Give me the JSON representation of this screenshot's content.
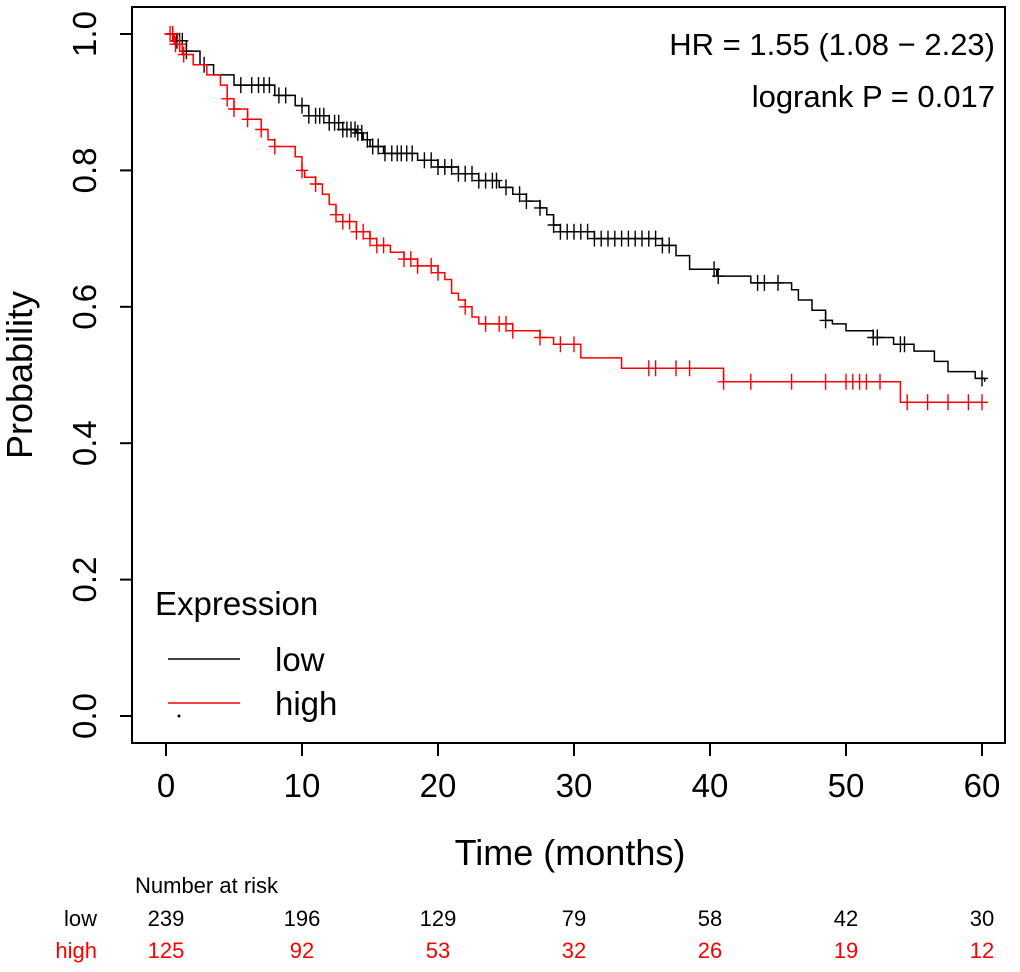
{
  "chart_data": {
    "type": "line",
    "subtype": "kaplan-meier",
    "xlabel": "Time (months)",
    "ylabel": "Probability",
    "xlim": [
      0,
      60
    ],
    "ylim": [
      0,
      1
    ],
    "xticks": [
      "0",
      "10",
      "20",
      "30",
      "40",
      "50",
      "60"
    ],
    "yticks": [
      "0.0",
      "0.2",
      "0.4",
      "0.6",
      "0.8",
      "1.0"
    ],
    "annotations": {
      "hr": "HR = 1.55 (1.08 − 2.23)",
      "logrank": "logrank P = 0.017"
    },
    "legend": {
      "title": "Expression",
      "position": "bottom-left",
      "entries": [
        "low",
        "high"
      ]
    },
    "series": [
      {
        "name": "low",
        "color": "#000000",
        "steps": [
          [
            0,
            1.0
          ],
          [
            0.8,
            0.99
          ],
          [
            1.5,
            0.975
          ],
          [
            2.5,
            0.955
          ],
          [
            3.5,
            0.94
          ],
          [
            5.0,
            0.925
          ],
          [
            8.0,
            0.91
          ],
          [
            9.5,
            0.895
          ],
          [
            10.5,
            0.88
          ],
          [
            12.0,
            0.87
          ],
          [
            13.0,
            0.86
          ],
          [
            14.0,
            0.855
          ],
          [
            14.5,
            0.845
          ],
          [
            15.0,
            0.835
          ],
          [
            16.0,
            0.825
          ],
          [
            18.5,
            0.815
          ],
          [
            20.0,
            0.805
          ],
          [
            21.5,
            0.795
          ],
          [
            23.0,
            0.785
          ],
          [
            24.5,
            0.775
          ],
          [
            25.5,
            0.765
          ],
          [
            26.5,
            0.755
          ],
          [
            27.5,
            0.745
          ],
          [
            28.0,
            0.735
          ],
          [
            28.5,
            0.72
          ],
          [
            29.0,
            0.71
          ],
          [
            31.5,
            0.7
          ],
          [
            36.5,
            0.69
          ],
          [
            37.5,
            0.675
          ],
          [
            38.5,
            0.655
          ],
          [
            40.5,
            0.645
          ],
          [
            43.0,
            0.635
          ],
          [
            46.0,
            0.625
          ],
          [
            46.5,
            0.61
          ],
          [
            47.5,
            0.595
          ],
          [
            48.5,
            0.58
          ],
          [
            49.0,
            0.575
          ],
          [
            50.0,
            0.565
          ],
          [
            52.0,
            0.555
          ],
          [
            53.5,
            0.545
          ],
          [
            55.0,
            0.535
          ],
          [
            56.5,
            0.52
          ],
          [
            57.5,
            0.505
          ],
          [
            59.5,
            0.495
          ],
          [
            60.2,
            0.49
          ]
        ],
        "censors": [
          0.5,
          0.8,
          1.0,
          1.2,
          1.5,
          2.8,
          5.5,
          6.3,
          6.8,
          7.2,
          7.6,
          8.3,
          8.8,
          10.0,
          10.5,
          11.0,
          11.3,
          11.6,
          12.0,
          12.4,
          12.7,
          13.0,
          13.3,
          13.6,
          13.9,
          14.1,
          14.4,
          14.8,
          15.2,
          15.6,
          16.1,
          16.6,
          17.0,
          17.3,
          17.7,
          18.1,
          19.0,
          19.5,
          20.0,
          20.5,
          21.0,
          21.5,
          22.0,
          22.5,
          23.0,
          23.5,
          24.0,
          24.3,
          25.0,
          26.0,
          26.5,
          27.5,
          28.5,
          29.0,
          29.5,
          30.0,
          30.5,
          31.0,
          31.5,
          32.0,
          32.5,
          33.0,
          33.5,
          34.0,
          34.5,
          35.0,
          35.5,
          36.0,
          36.5,
          37.0,
          40.3,
          40.6,
          43.5,
          44.0,
          45.0,
          48.5,
          52.0,
          52.3,
          54.0,
          54.3,
          60.0
        ]
      },
      {
        "name": "high",
        "color": "#ff0000",
        "steps": [
          [
            0,
            1.0
          ],
          [
            0.6,
            0.985
          ],
          [
            1.2,
            0.97
          ],
          [
            2.0,
            0.955
          ],
          [
            3.0,
            0.94
          ],
          [
            4.0,
            0.925
          ],
          [
            4.5,
            0.905
          ],
          [
            5.0,
            0.89
          ],
          [
            6.0,
            0.875
          ],
          [
            7.0,
            0.86
          ],
          [
            7.5,
            0.845
          ],
          [
            8.0,
            0.835
          ],
          [
            9.5,
            0.82
          ],
          [
            10.0,
            0.8
          ],
          [
            10.2,
            0.79
          ],
          [
            11.0,
            0.78
          ],
          [
            11.5,
            0.765
          ],
          [
            12.0,
            0.75
          ],
          [
            12.5,
            0.735
          ],
          [
            13.0,
            0.725
          ],
          [
            14.0,
            0.71
          ],
          [
            15.0,
            0.7
          ],
          [
            15.5,
            0.69
          ],
          [
            16.5,
            0.68
          ],
          [
            17.5,
            0.67
          ],
          [
            18.5,
            0.66
          ],
          [
            20.0,
            0.65
          ],
          [
            20.5,
            0.64
          ],
          [
            21.0,
            0.62
          ],
          [
            21.5,
            0.61
          ],
          [
            22.0,
            0.6
          ],
          [
            22.5,
            0.585
          ],
          [
            23.0,
            0.575
          ],
          [
            25.5,
            0.565
          ],
          [
            27.5,
            0.555
          ],
          [
            28.5,
            0.545
          ],
          [
            30.0,
            0.545
          ],
          [
            30.5,
            0.525
          ],
          [
            33.5,
            0.51
          ],
          [
            41.0,
            0.49
          ],
          [
            54.0,
            0.46
          ],
          [
            60.0,
            0.46
          ]
        ],
        "censors": [
          0.3,
          0.5,
          0.7,
          1.0,
          1.3,
          4.5,
          5.0,
          6.0,
          7.0,
          8.0,
          10.0,
          11.0,
          12.5,
          13.0,
          13.5,
          14.0,
          14.5,
          15.0,
          15.5,
          16.0,
          17.5,
          18.0,
          18.5,
          19.5,
          20.0,
          22.0,
          23.5,
          24.5,
          25.0,
          25.5,
          27.5,
          29.0,
          30.0,
          35.5,
          36.0,
          37.5,
          38.5,
          41.0,
          43.0,
          46.0,
          48.5,
          50.0,
          50.5,
          51.0,
          51.5,
          52.5,
          54.5,
          56.0,
          57.5,
          59.0,
          60.0
        ]
      }
    ],
    "risk_table": {
      "title": "Number at risk",
      "times": [
        0,
        10,
        20,
        30,
        40,
        50,
        60
      ],
      "rows": [
        {
          "label": "low",
          "color": "#000000",
          "values": [
            "239",
            "196",
            "129",
            "79",
            "58",
            "42",
            "30"
          ]
        },
        {
          "label": "high",
          "color": "#ff0000",
          "values": [
            "125",
            "92",
            "53",
            "32",
            "26",
            "19",
            "12"
          ]
        }
      ]
    }
  }
}
